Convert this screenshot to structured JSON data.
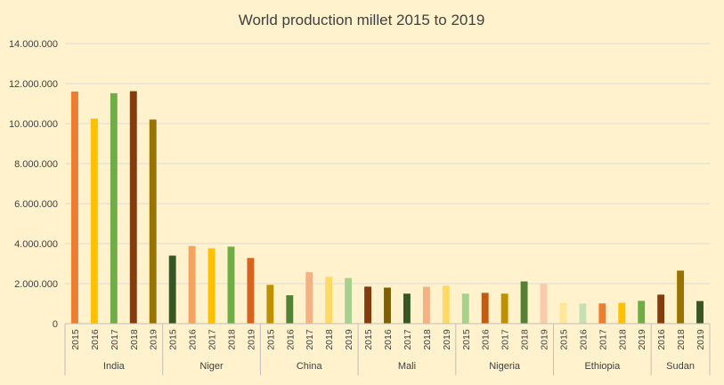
{
  "chart_data": {
    "type": "bar",
    "title": "World production millet  2015 to 2019",
    "ylim": [
      0,
      14000000
    ],
    "yticks": [
      0,
      2000000,
      4000000,
      6000000,
      8000000,
      10000000,
      12000000,
      14000000
    ],
    "ytick_labels": [
      "0",
      "2.000.000",
      "4.000.000",
      "6.000.000",
      "8.000.000",
      "10.000.000",
      "12.000.000",
      "14.000.000"
    ],
    "grid": true,
    "legend": "none",
    "groups": [
      {
        "name": "India",
        "bars": [
          {
            "year": "2015",
            "value": 11600000,
            "color": "#ed7d31"
          },
          {
            "year": "2016",
            "value": 10250000,
            "color": "#ffc000"
          },
          {
            "year": "2017",
            "value": 11520000,
            "color": "#70ad47"
          },
          {
            "year": "2018",
            "value": 11620000,
            "color": "#843c0c"
          },
          {
            "year": "2019",
            "value": 10200000,
            "color": "#997300"
          }
        ]
      },
      {
        "name": "Niger",
        "bars": [
          {
            "year": "2015",
            "value": 3400000,
            "color": "#375623"
          },
          {
            "year": "2016",
            "value": 3880000,
            "color": "#f4a460"
          },
          {
            "year": "2017",
            "value": 3760000,
            "color": "#ffc000"
          },
          {
            "year": "2018",
            "value": 3850000,
            "color": "#70ad47"
          },
          {
            "year": "2019",
            "value": 3280000,
            "color": "#d9621e"
          }
        ]
      },
      {
        "name": "China",
        "bars": [
          {
            "year": "2015",
            "value": 1940000,
            "color": "#bf9000"
          },
          {
            "year": "2016",
            "value": 1420000,
            "color": "#548235"
          },
          {
            "year": "2017",
            "value": 2570000,
            "color": "#f4b183"
          },
          {
            "year": "2018",
            "value": 2340000,
            "color": "#ffd966"
          },
          {
            "year": "2019",
            "value": 2280000,
            "color": "#a9d18e"
          }
        ]
      },
      {
        "name": "Mali",
        "bars": [
          {
            "year": "2015",
            "value": 1850000,
            "color": "#843c0c"
          },
          {
            "year": "2016",
            "value": 1800000,
            "color": "#7f6000"
          },
          {
            "year": "2017",
            "value": 1500000,
            "color": "#375623"
          },
          {
            "year": "2018",
            "value": 1840000,
            "color": "#f4b183"
          },
          {
            "year": "2019",
            "value": 1900000,
            "color": "#ffd966"
          }
        ]
      },
      {
        "name": "Nigeria",
        "bars": [
          {
            "year": "2015",
            "value": 1500000,
            "color": "#a9d18e"
          },
          {
            "year": "2016",
            "value": 1540000,
            "color": "#c55a11"
          },
          {
            "year": "2017",
            "value": 1500000,
            "color": "#bf9000"
          },
          {
            "year": "2018",
            "value": 2110000,
            "color": "#548235"
          },
          {
            "year": "2019",
            "value": 2000000,
            "color": "#f8cbad"
          }
        ]
      },
      {
        "name": "Ethiopia",
        "bars": [
          {
            "year": "2015",
            "value": 1040000,
            "color": "#ffe699"
          },
          {
            "year": "2016",
            "value": 1000000,
            "color": "#c5e0b4"
          },
          {
            "year": "2017",
            "value": 1010000,
            "color": "#ed7d31"
          },
          {
            "year": "2018",
            "value": 1040000,
            "color": "#ffc000"
          },
          {
            "year": "2019",
            "value": 1140000,
            "color": "#70ad47"
          }
        ]
      },
      {
        "name": "Sudan",
        "bars": [
          {
            "year": "2016",
            "value": 1450000,
            "color": "#843c0c"
          },
          {
            "year": "2018",
            "value": 2650000,
            "color": "#997300"
          },
          {
            "year": "2019",
            "value": 1130000,
            "color": "#375623"
          }
        ]
      }
    ]
  }
}
